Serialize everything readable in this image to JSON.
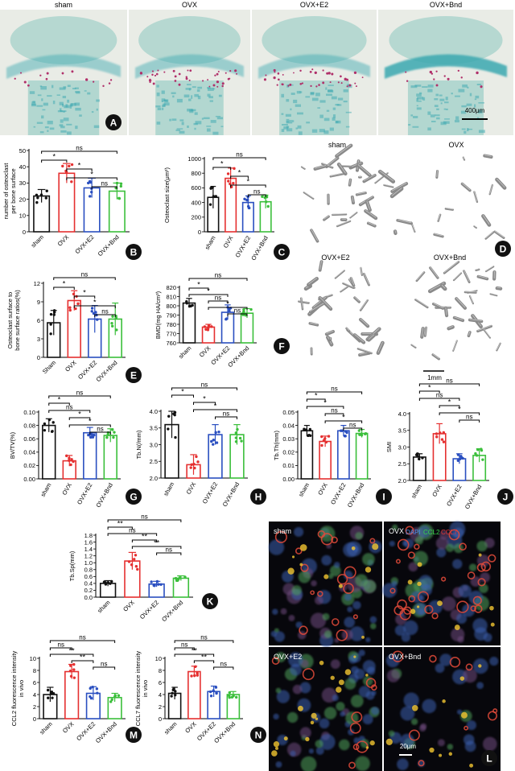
{
  "histology": {
    "labels": [
      "sham",
      "OVX",
      "OVX+E2",
      "OVX+Bnd"
    ],
    "scale_bar": "400μm",
    "panel": "A",
    "colors": {
      "cartilage": "#3aa8b0",
      "bone": "#9fd0c8",
      "background": "#e9ece6",
      "osteoclast": "#b0306a"
    }
  },
  "microct": {
    "labels": [
      "sham",
      "OVX",
      "OVX+E2",
      "OVX+Bnd"
    ],
    "scale_bar": "1mm",
    "panel": "D"
  },
  "fluorescence": {
    "labels": [
      "sham",
      "OVX",
      "OVX+E2",
      "OVX+Bnd"
    ],
    "legend": [
      "DAPI",
      "CCL2",
      "CCL7"
    ],
    "legend_colors": [
      "#4f8fe8",
      "#38d04a",
      "#e53535"
    ],
    "scale_bar": "20μm",
    "panel": "L"
  },
  "group_colors": [
    "#111111",
    "#e53030",
    "#2a4fc0",
    "#3bbf3b"
  ],
  "chart_data": [
    {
      "id": "B",
      "type": "bar",
      "categories": [
        "sham",
        "OVX",
        "OVX+E2",
        "OVX+Bnd"
      ],
      "values": [
        22,
        36,
        27,
        25
      ],
      "errors": [
        4,
        6,
        6,
        5
      ],
      "ylabel": "number of osteoclast per bone surface",
      "ylim": [
        0,
        50
      ],
      "yticks": [
        0,
        10,
        20,
        30,
        40,
        50
      ],
      "significance": [
        "ns",
        "*",
        "*",
        "*",
        "ns"
      ]
    },
    {
      "id": "C",
      "type": "bar",
      "categories": [
        "sham",
        "OVX",
        "OVX+E2",
        "OVX+Bnd"
      ],
      "values": [
        470,
        730,
        400,
        410
      ],
      "errors": [
        150,
        140,
        90,
        90
      ],
      "ylabel": "Osteoclast size(μm²)",
      "ylim": [
        0,
        1000
      ],
      "yticks": [
        0,
        200,
        400,
        600,
        800,
        1000
      ],
      "significance": [
        "ns",
        "*",
        "*",
        "*",
        "ns"
      ]
    },
    {
      "id": "E",
      "type": "bar",
      "categories": [
        "Sham",
        "OVX",
        "OVX+E2",
        "OVX+Bnd"
      ],
      "values": [
        5.6,
        9.2,
        6.2,
        6.2
      ],
      "errors": [
        2.0,
        1.6,
        2.2,
        2.6
      ],
      "ylabel": "Osteoclast surface to bone surface ratios(%)",
      "ylim": [
        0,
        12
      ],
      "yticks": [
        0,
        3,
        6,
        9,
        12
      ],
      "significance": [
        "ns",
        "*",
        "*",
        "*",
        "ns"
      ]
    },
    {
      "id": "F",
      "type": "bar",
      "categories": [
        "sham",
        "OVX",
        "OVX+E2",
        "OVX+Bnd"
      ],
      "values": [
        803,
        777,
        793,
        792
      ],
      "errors": [
        5,
        3,
        8,
        5
      ],
      "ylabel": "BMD(mg HA/cm³)",
      "ylim": [
        760,
        820
      ],
      "yticks": [
        760,
        770,
        780,
        790,
        800,
        810,
        820
      ],
      "significance": [
        "ns",
        "*",
        "*",
        "ns",
        "*",
        "ns"
      ]
    },
    {
      "id": "G",
      "type": "bar",
      "categories": [
        "sham",
        "OVX",
        "OVX+E2",
        "OVX+Bnd"
      ],
      "values": [
        0.08,
        0.027,
        0.069,
        0.065
      ],
      "errors": [
        0.01,
        0.008,
        0.008,
        0.01
      ],
      "ylabel": "BV/TV(%)",
      "ylim": [
        0,
        0.1
      ],
      "yticks": [
        0,
        0.02,
        0.04,
        0.06,
        0.08,
        0.1
      ],
      "yticklabels": [
        "0.00",
        "0.02",
        "0.04",
        "0.06",
        "0.08",
        "0.10"
      ],
      "significance": [
        "ns",
        "*",
        "ns",
        "*",
        "*",
        "ns"
      ]
    },
    {
      "id": "H",
      "type": "bar",
      "categories": [
        "sham",
        "OVX",
        "OVX+E2",
        "OVX+Bnd"
      ],
      "values": [
        3.6,
        2.4,
        3.3,
        3.3
      ],
      "errors": [
        0.4,
        0.3,
        0.3,
        0.3
      ],
      "ylabel": "Tb.N(/mm)",
      "ylim": [
        2,
        4
      ],
      "yticks": [
        2.0,
        2.5,
        3.0,
        3.5,
        4.0
      ],
      "yticklabels": [
        "2.0",
        "2.5",
        "3.0",
        "3.5",
        "4.0"
      ],
      "significance": [
        "ns",
        "*",
        "*",
        "*",
        "ns"
      ]
    },
    {
      "id": "I",
      "type": "bar",
      "categories": [
        "sham",
        "OVX",
        "OVX+E2",
        "OVX+Bnd"
      ],
      "values": [
        0.036,
        0.028,
        0.036,
        0.034
      ],
      "errors": [
        0.004,
        0.004,
        0.004,
        0.003
      ],
      "ylabel": "Tb.Th(mm)",
      "ylim": [
        0,
        0.05
      ],
      "yticks": [
        0,
        0.01,
        0.02,
        0.03,
        0.04,
        0.05
      ],
      "yticklabels": [
        "0.00",
        "0.01",
        "0.02",
        "0.03",
        "0.04",
        "0.05"
      ],
      "significance": [
        "ns",
        "*",
        "*",
        "ns",
        "*",
        "ns"
      ]
    },
    {
      "id": "J",
      "type": "bar",
      "categories": [
        "sham",
        "OVX",
        "OVX+E2",
        "OVX+Bnd"
      ],
      "values": [
        2.7,
        3.4,
        2.65,
        2.75
      ],
      "errors": [
        0.1,
        0.3,
        0.15,
        0.2
      ],
      "ylabel": "SMI",
      "ylim": [
        2,
        4
      ],
      "yticks": [
        2.0,
        2.5,
        3.0,
        3.5,
        4.0
      ],
      "yticklabels": [
        "2.0",
        "2.5",
        "3.0",
        "3.5",
        "4.0"
      ],
      "significance": [
        "ns",
        "*",
        "ns",
        "*",
        "*",
        "ns"
      ]
    },
    {
      "id": "K",
      "type": "bar",
      "categories": [
        "sham",
        "OVX",
        "OVX+E2",
        "OVX+Bnd"
      ],
      "values": [
        0.4,
        1.05,
        0.38,
        0.55
      ],
      "errors": [
        0.08,
        0.25,
        0.08,
        0.07
      ],
      "ylabel": "Tb.Sp(mm)",
      "ylim": [
        0,
        1.8
      ],
      "yticks": [
        0,
        0.2,
        0.4,
        0.6,
        0.8,
        1.0,
        1.2,
        1.4,
        1.6,
        1.8
      ],
      "yticklabels": [
        "0.0",
        "0.2",
        "0.4",
        "0.6",
        "0.8",
        "1.0",
        "1.2",
        "1.4",
        "1.6",
        "1.8"
      ],
      "significance": [
        "ns",
        "**",
        "ns",
        "**",
        "**",
        "ns"
      ]
    },
    {
      "id": "M",
      "type": "bar",
      "categories": [
        "sham",
        "OVX",
        "OVX+E2",
        "OVX+Bnd"
      ],
      "values": [
        4.0,
        7.8,
        4.2,
        3.5
      ],
      "errors": [
        1.2,
        1.2,
        1.1,
        0.7
      ],
      "ylabel": "CCL2 fluorescence intensity in vivo",
      "ylim": [
        0,
        10
      ],
      "yticks": [
        0,
        2,
        4,
        6,
        8,
        10
      ],
      "significance": [
        "ns",
        "ns",
        "**",
        "**",
        "ns"
      ]
    },
    {
      "id": "N",
      "type": "bar",
      "categories": [
        "sham",
        "OVX",
        "OVX+E2",
        "OVX+Bnd"
      ],
      "values": [
        4.2,
        7.8,
        4.5,
        4.0
      ],
      "errors": [
        1.0,
        0.9,
        0.9,
        0.5
      ],
      "ylabel": "CCL7 fluorescence intensity in vivo",
      "ylim": [
        0,
        10
      ],
      "yticks": [
        0,
        2,
        4,
        6,
        8,
        10
      ],
      "significance": [
        "ns",
        "ns",
        "**",
        "**",
        "ns"
      ]
    }
  ]
}
